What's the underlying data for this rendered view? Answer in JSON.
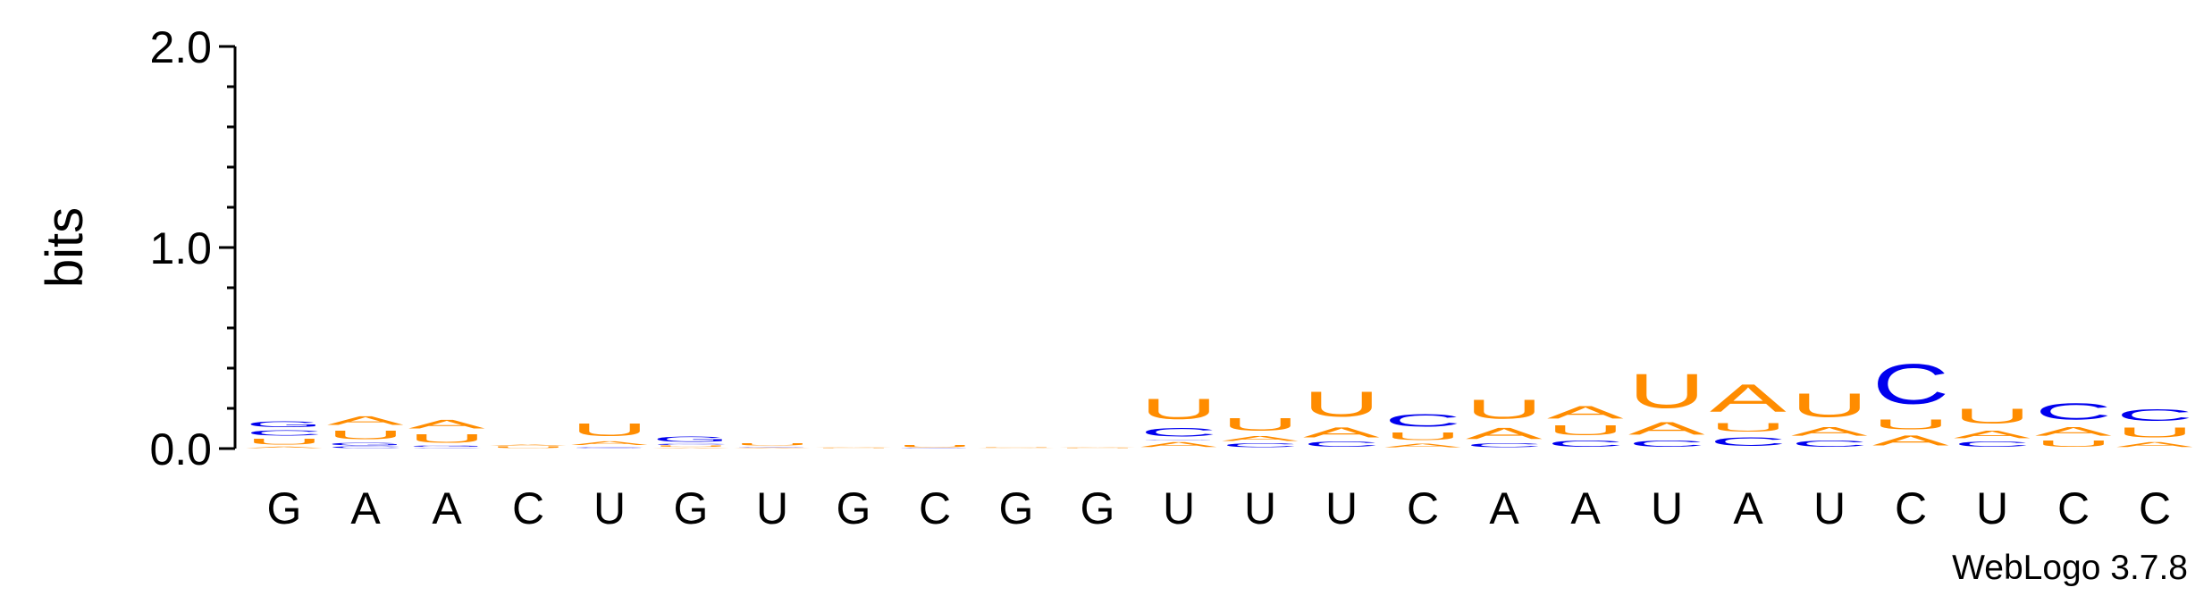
{
  "chart_data": {
    "type": "sequence-logo",
    "ylabel": "bits",
    "ylim": [
      0,
      2.0
    ],
    "yticks": [
      "0.0",
      "1.0",
      "2.0"
    ],
    "footer": "WebLogo 3.7.8",
    "colors": {
      "A": "#FF8C00",
      "C": "#0000EE",
      "G": "#0000EE",
      "U": "#FF8C00"
    },
    "positions": [
      {
        "label": "G",
        "letters": [
          {
            "letter": "A",
            "bits": 0.012
          },
          {
            "letter": "U",
            "bits": 0.045
          },
          {
            "letter": "C",
            "bits": 0.04
          },
          {
            "letter": "G",
            "bits": 0.045
          }
        ]
      },
      {
        "label": "A",
        "letters": [
          {
            "letter": "C",
            "bits": 0.012
          },
          {
            "letter": "G",
            "bits": 0.022
          },
          {
            "letter": "U",
            "bits": 0.07
          },
          {
            "letter": "A",
            "bits": 0.07
          }
        ]
      },
      {
        "label": "A",
        "letters": [
          {
            "letter": "C",
            "bits": 0.006
          },
          {
            "letter": "G",
            "bits": 0.01
          },
          {
            "letter": "U",
            "bits": 0.07
          },
          {
            "letter": "A",
            "bits": 0.07
          }
        ]
      },
      {
        "label": "C",
        "letters": [
          {
            "letter": "U",
            "bits": 0.012
          },
          {
            "letter": "A",
            "bits": 0.01
          }
        ]
      },
      {
        "label": "U",
        "letters": [
          {
            "letter": "G",
            "bits": 0.006
          },
          {
            "letter": "C",
            "bits": 0.006
          },
          {
            "letter": "A",
            "bits": 0.03
          },
          {
            "letter": "U",
            "bits": 0.1
          }
        ]
      },
      {
        "label": "G",
        "letters": [
          {
            "letter": "A",
            "bits": 0.006
          },
          {
            "letter": "U",
            "bits": 0.01
          },
          {
            "letter": "C",
            "bits": 0.01
          },
          {
            "letter": "G",
            "bits": 0.04
          }
        ]
      },
      {
        "label": "U",
        "letters": [
          {
            "letter": "A",
            "bits": 0.006
          },
          {
            "letter": "G",
            "bits": 0.006
          },
          {
            "letter": "U",
            "bits": 0.02
          }
        ]
      },
      {
        "label": "G",
        "letters": [
          {
            "letter": "U",
            "bits": 0.004
          },
          {
            "letter": "A",
            "bits": 0.004
          }
        ]
      },
      {
        "label": "C",
        "letters": [
          {
            "letter": "G",
            "bits": 0.004
          },
          {
            "letter": "U",
            "bits": 0.016
          }
        ]
      },
      {
        "label": "G",
        "letters": [
          {
            "letter": "A",
            "bits": 0.004
          },
          {
            "letter": "U",
            "bits": 0.004
          }
        ]
      },
      {
        "label": "G",
        "letters": [
          {
            "letter": "U",
            "bits": 0.004
          },
          {
            "letter": "A",
            "bits": 0.004
          }
        ]
      },
      {
        "label": "U",
        "letters": [
          {
            "letter": "A",
            "bits": 0.04
          },
          {
            "letter": "G",
            "bits": 0.006
          },
          {
            "letter": "C",
            "bits": 0.07
          },
          {
            "letter": "U",
            "bits": 0.16
          }
        ]
      },
      {
        "label": "U",
        "letters": [
          {
            "letter": "C",
            "bits": 0.03
          },
          {
            "letter": "A",
            "bits": 0.04
          },
          {
            "letter": "U",
            "bits": 0.1
          }
        ]
      },
      {
        "label": "U",
        "letters": [
          {
            "letter": "C",
            "bits": 0.04
          },
          {
            "letter": "A",
            "bits": 0.08
          },
          {
            "letter": "U",
            "bits": 0.2
          }
        ]
      },
      {
        "label": "C",
        "letters": [
          {
            "letter": "A",
            "bits": 0.03
          },
          {
            "letter": "U",
            "bits": 0.06
          },
          {
            "letter": "C",
            "bits": 0.1
          }
        ]
      },
      {
        "label": "A",
        "letters": [
          {
            "letter": "C",
            "bits": 0.03
          },
          {
            "letter": "A",
            "bits": 0.09
          },
          {
            "letter": "U",
            "bits": 0.15
          }
        ]
      },
      {
        "label": "A",
        "letters": [
          {
            "letter": "C",
            "bits": 0.05
          },
          {
            "letter": "U",
            "bits": 0.08
          },
          {
            "letter": "A",
            "bits": 0.1
          }
        ]
      },
      {
        "label": "U",
        "letters": [
          {
            "letter": "C",
            "bits": 0.05
          },
          {
            "letter": "A",
            "bits": 0.1
          },
          {
            "letter": "U",
            "bits": 0.27
          }
        ]
      },
      {
        "label": "A",
        "letters": [
          {
            "letter": "C",
            "bits": 0.07
          },
          {
            "letter": "U",
            "bits": 0.07
          },
          {
            "letter": "A",
            "bits": 0.22
          }
        ]
      },
      {
        "label": "U",
        "letters": [
          {
            "letter": "C",
            "bits": 0.05
          },
          {
            "letter": "A",
            "bits": 0.07
          },
          {
            "letter": "U",
            "bits": 0.19
          }
        ]
      },
      {
        "label": "C",
        "letters": [
          {
            "letter": "A",
            "bits": 0.08
          },
          {
            "letter": "U",
            "bits": 0.08
          },
          {
            "letter": "C",
            "bits": 0.32
          }
        ]
      },
      {
        "label": "U",
        "letters": [
          {
            "letter": "C",
            "bits": 0.04
          },
          {
            "letter": "A",
            "bits": 0.06
          },
          {
            "letter": "U",
            "bits": 0.12
          }
        ]
      },
      {
        "label": "C",
        "letters": [
          {
            "letter": "U",
            "bits": 0.05
          },
          {
            "letter": "A",
            "bits": 0.07
          },
          {
            "letter": "C",
            "bits": 0.13
          }
        ]
      },
      {
        "label": "C",
        "letters": [
          {
            "letter": "A",
            "bits": 0.04
          },
          {
            "letter": "U",
            "bits": 0.08
          },
          {
            "letter": "C",
            "bits": 0.09
          }
        ]
      }
    ]
  }
}
